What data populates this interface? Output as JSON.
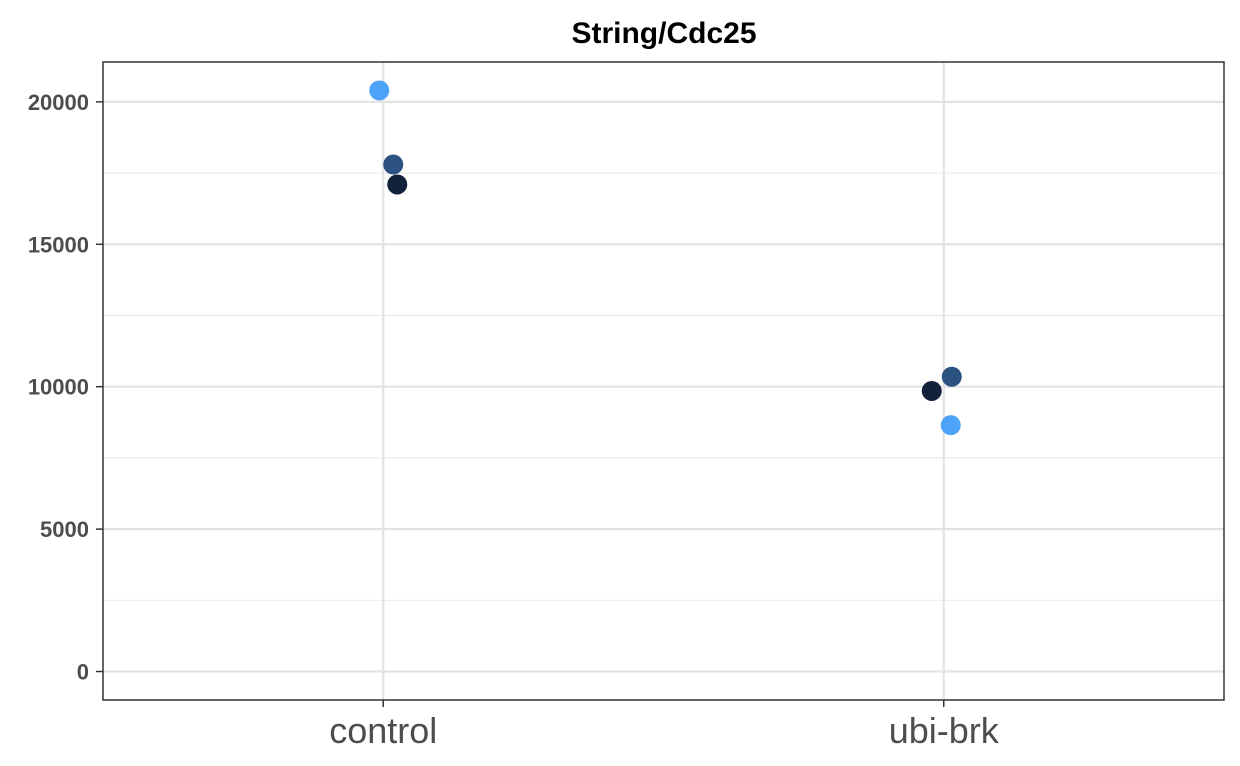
{
  "chart_data": {
    "type": "scatter",
    "title": "String/Cdc25",
    "xlabel": "",
    "ylabel": "",
    "categories": [
      "control",
      "ubi-brk"
    ],
    "yticks": [
      0,
      5000,
      10000,
      15000,
      20000
    ],
    "ylim": [
      -1000,
      21400
    ],
    "grid": true,
    "legend": "none",
    "series": [
      {
        "color": "#4da3f7",
        "points": [
          {
            "category": "control",
            "y": 20400
          },
          {
            "category": "ubi-brk",
            "y": 8650
          }
        ]
      },
      {
        "color": "#2c5282",
        "points": [
          {
            "category": "control",
            "y": 17800
          },
          {
            "category": "ubi-brk",
            "y": 10350
          }
        ]
      },
      {
        "color": "#12223a",
        "points": [
          {
            "category": "control",
            "y": 17100
          },
          {
            "category": "ubi-brk",
            "y": 9850
          }
        ]
      }
    ]
  }
}
